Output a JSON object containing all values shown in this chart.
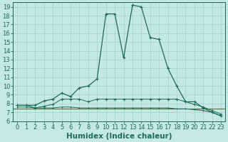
{
  "xlabel": "Humidex (Indice chaleur)",
  "xlim": [
    -0.5,
    23.5
  ],
  "ylim": [
    6,
    19.5
  ],
  "xticks": [
    0,
    1,
    2,
    3,
    4,
    5,
    6,
    7,
    8,
    9,
    10,
    11,
    12,
    13,
    14,
    15,
    16,
    17,
    18,
    19,
    20,
    21,
    22,
    23
  ],
  "yticks": [
    6,
    7,
    8,
    9,
    10,
    11,
    12,
    13,
    14,
    15,
    16,
    17,
    18,
    19
  ],
  "background_color": "#c4e8e4",
  "grid_color": "#a8d0cc",
  "line_color": "#1a6b5a",
  "curve1": [
    7.8,
    7.8,
    7.8,
    8.3,
    8.5,
    9.2,
    8.8,
    9.8,
    10.0,
    10.8,
    18.2,
    18.2,
    13.2,
    19.2,
    19.0,
    15.5,
    15.3,
    12.0,
    10.0,
    8.2,
    8.2,
    7.5,
    7.0,
    6.6
  ],
  "curve2": [
    7.8,
    7.8,
    7.5,
    7.7,
    7.9,
    8.5,
    8.5,
    8.5,
    8.2,
    8.5,
    8.5,
    8.5,
    8.5,
    8.5,
    8.5,
    8.5,
    8.5,
    8.5,
    8.5,
    8.2,
    7.9,
    7.6,
    7.2,
    6.8
  ],
  "curve3": [
    7.6,
    7.6,
    7.5,
    7.5,
    7.5,
    7.6,
    7.6,
    7.5,
    7.5,
    7.5,
    7.5,
    7.5,
    7.5,
    7.5,
    7.5,
    7.5,
    7.5,
    7.5,
    7.4,
    7.4,
    7.3,
    7.2,
    7.0,
    6.6
  ],
  "red_line_y": 7.4,
  "fontsize_tick": 6,
  "fontsize_label": 7.5
}
